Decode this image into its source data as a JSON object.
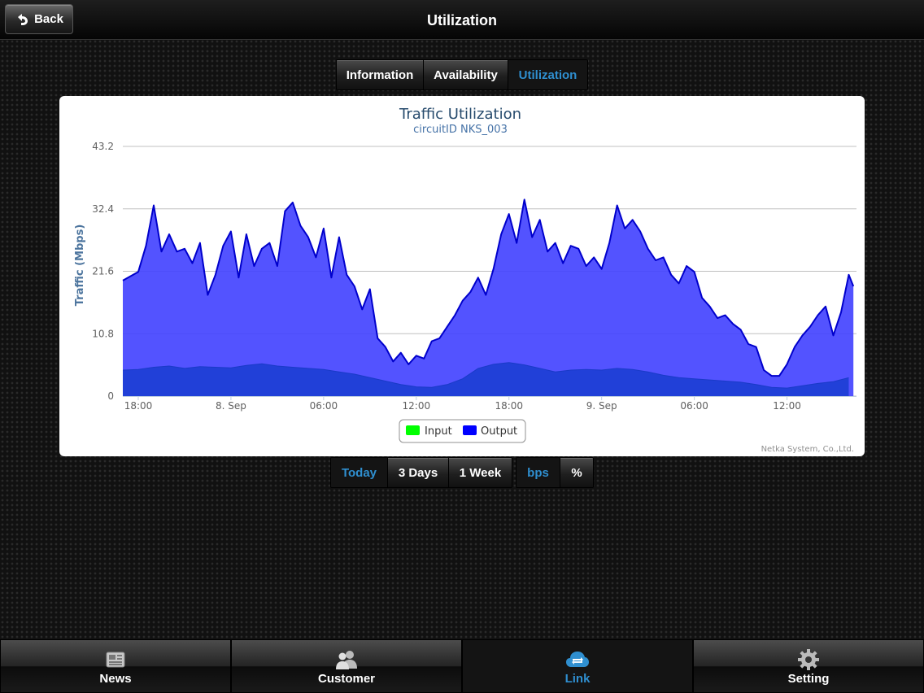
{
  "navbar": {
    "title": "Utilization",
    "back_label": "Back"
  },
  "top_tabs": [
    {
      "label": "Information",
      "active": false
    },
    {
      "label": "Availability",
      "active": false
    },
    {
      "label": "Utilization",
      "active": true
    }
  ],
  "range_tabs": [
    {
      "label": "Today",
      "active": true
    },
    {
      "label": "3 Days",
      "active": false
    },
    {
      "label": "1 Week",
      "active": false
    }
  ],
  "unit_tabs": [
    {
      "label": "bps",
      "active": true
    },
    {
      "label": "%",
      "active": false
    }
  ],
  "bottom_tabs": [
    {
      "label": "News",
      "icon": "newspaper-icon",
      "active": false
    },
    {
      "label": "Customer",
      "icon": "people-icon",
      "active": false
    },
    {
      "label": "Link",
      "icon": "cloud-sync-icon",
      "active": true
    },
    {
      "label": "Setting",
      "icon": "gear-icon",
      "active": false
    }
  ],
  "chart_data": {
    "type": "area",
    "title": "Traffic Utilization",
    "subtitle": "circuitID NKS_003",
    "ylabel": "Traffic (Mbps)",
    "xlabel": "",
    "yticks": [
      0,
      10.8,
      21.6,
      32.4,
      43.2
    ],
    "ylim": [
      0,
      43.2
    ],
    "xticks": [
      {
        "label": "18:00",
        "hour": 0
      },
      {
        "label": "8. Sep",
        "hour": 6
      },
      {
        "label": "06:00",
        "hour": 12
      },
      {
        "label": "12:00",
        "hour": 18
      },
      {
        "label": "18:00",
        "hour": 24
      },
      {
        "label": "9. Sep",
        "hour": 30
      },
      {
        "label": "06:00",
        "hour": 36
      },
      {
        "label": "12:00",
        "hour": 42
      }
    ],
    "xlim_hours": [
      -1,
      46.5
    ],
    "grid": true,
    "legend": "bottom-center",
    "credit": "Netka System, Co.,Ltd.",
    "series": [
      {
        "name": "Input",
        "color": "#00ff00",
        "points": [
          [
            -1,
            4.5
          ],
          [
            0,
            4.6
          ],
          [
            1,
            5.0
          ],
          [
            2,
            5.2
          ],
          [
            3,
            4.8
          ],
          [
            4,
            5.1
          ],
          [
            5,
            5.0
          ],
          [
            6,
            4.9
          ],
          [
            7,
            5.3
          ],
          [
            8,
            5.6
          ],
          [
            9,
            5.2
          ],
          [
            10,
            5.0
          ],
          [
            11,
            4.8
          ],
          [
            12,
            4.6
          ],
          [
            13,
            4.2
          ],
          [
            14,
            3.8
          ],
          [
            15,
            3.2
          ],
          [
            16,
            2.6
          ],
          [
            17,
            2.0
          ],
          [
            18,
            1.6
          ],
          [
            19,
            1.5
          ],
          [
            20,
            2.0
          ],
          [
            21,
            3.0
          ],
          [
            22,
            4.8
          ],
          [
            23,
            5.5
          ],
          [
            24,
            5.8
          ],
          [
            25,
            5.4
          ],
          [
            26,
            4.8
          ],
          [
            27,
            4.2
          ],
          [
            28,
            4.5
          ],
          [
            29,
            4.6
          ],
          [
            30,
            4.5
          ],
          [
            31,
            4.8
          ],
          [
            32,
            4.6
          ],
          [
            33,
            4.2
          ],
          [
            34,
            3.6
          ],
          [
            35,
            3.2
          ],
          [
            36,
            3.0
          ],
          [
            37,
            2.8
          ],
          [
            38,
            2.6
          ],
          [
            39,
            2.4
          ],
          [
            40,
            2.0
          ],
          [
            41,
            1.5
          ],
          [
            42,
            1.4
          ],
          [
            43,
            1.8
          ],
          [
            44,
            2.2
          ],
          [
            45,
            2.5
          ],
          [
            46,
            3.2
          ]
        ]
      },
      {
        "name": "Output",
        "color": "#0000ff",
        "points": [
          [
            -1,
            20.0
          ],
          [
            0,
            21.5
          ],
          [
            0.5,
            26.0
          ],
          [
            1,
            33.0
          ],
          [
            1.5,
            25.0
          ],
          [
            2,
            28.0
          ],
          [
            2.5,
            25.0
          ],
          [
            3,
            25.5
          ],
          [
            3.5,
            23.0
          ],
          [
            4,
            26.5
          ],
          [
            4.5,
            17.5
          ],
          [
            5,
            21.0
          ],
          [
            5.5,
            26.0
          ],
          [
            6,
            28.5
          ],
          [
            6.5,
            20.5
          ],
          [
            7,
            28.0
          ],
          [
            7.5,
            22.5
          ],
          [
            8,
            25.5
          ],
          [
            8.5,
            26.5
          ],
          [
            9,
            22.5
          ],
          [
            9.5,
            32.0
          ],
          [
            10,
            33.5
          ],
          [
            10.5,
            29.5
          ],
          [
            11,
            27.5
          ],
          [
            11.5,
            24.0
          ],
          [
            12,
            29.0
          ],
          [
            12.5,
            20.5
          ],
          [
            13,
            27.5
          ],
          [
            13.5,
            21.0
          ],
          [
            14,
            19.0
          ],
          [
            14.5,
            15.0
          ],
          [
            15,
            18.5
          ],
          [
            15.5,
            10.0
          ],
          [
            16,
            8.5
          ],
          [
            16.5,
            6.0
          ],
          [
            17,
            7.5
          ],
          [
            17.5,
            5.5
          ],
          [
            18,
            7.0
          ],
          [
            18.5,
            6.5
          ],
          [
            19,
            9.5
          ],
          [
            19.5,
            10.0
          ],
          [
            20,
            12.0
          ],
          [
            20.5,
            14.0
          ],
          [
            21,
            16.5
          ],
          [
            21.5,
            18.0
          ],
          [
            22,
            20.5
          ],
          [
            22.5,
            17.5
          ],
          [
            23,
            22.0
          ],
          [
            23.5,
            28.0
          ],
          [
            24,
            31.5
          ],
          [
            24.5,
            26.5
          ],
          [
            25,
            34.0
          ],
          [
            25.5,
            27.5
          ],
          [
            26,
            30.5
          ],
          [
            26.5,
            25.0
          ],
          [
            27,
            26.5
          ],
          [
            27.5,
            23.0
          ],
          [
            28,
            26.0
          ],
          [
            28.5,
            25.5
          ],
          [
            29,
            22.5
          ],
          [
            29.5,
            24.0
          ],
          [
            30,
            22.0
          ],
          [
            30.5,
            26.5
          ],
          [
            31,
            33.0
          ],
          [
            31.5,
            29.0
          ],
          [
            32,
            30.5
          ],
          [
            32.5,
            28.5
          ],
          [
            33,
            25.5
          ],
          [
            33.5,
            23.5
          ],
          [
            34,
            24.0
          ],
          [
            34.5,
            21.0
          ],
          [
            35,
            19.5
          ],
          [
            35.5,
            22.5
          ],
          [
            36,
            21.5
          ],
          [
            36.5,
            17.0
          ],
          [
            37,
            15.5
          ],
          [
            37.5,
            13.5
          ],
          [
            38,
            14.0
          ],
          [
            38.5,
            12.5
          ],
          [
            39,
            11.5
          ],
          [
            39.5,
            9.0
          ],
          [
            40,
            8.5
          ],
          [
            40.5,
            4.5
          ],
          [
            41,
            3.5
          ],
          [
            41.5,
            3.5
          ],
          [
            42,
            5.5
          ],
          [
            42.5,
            8.5
          ],
          [
            43,
            10.5
          ],
          [
            43.5,
            12.0
          ],
          [
            44,
            14.0
          ],
          [
            44.5,
            15.5
          ],
          [
            45,
            10.5
          ],
          [
            45.5,
            14.5
          ],
          [
            46,
            21.0
          ],
          [
            46.3,
            19.0
          ]
        ]
      }
    ]
  }
}
